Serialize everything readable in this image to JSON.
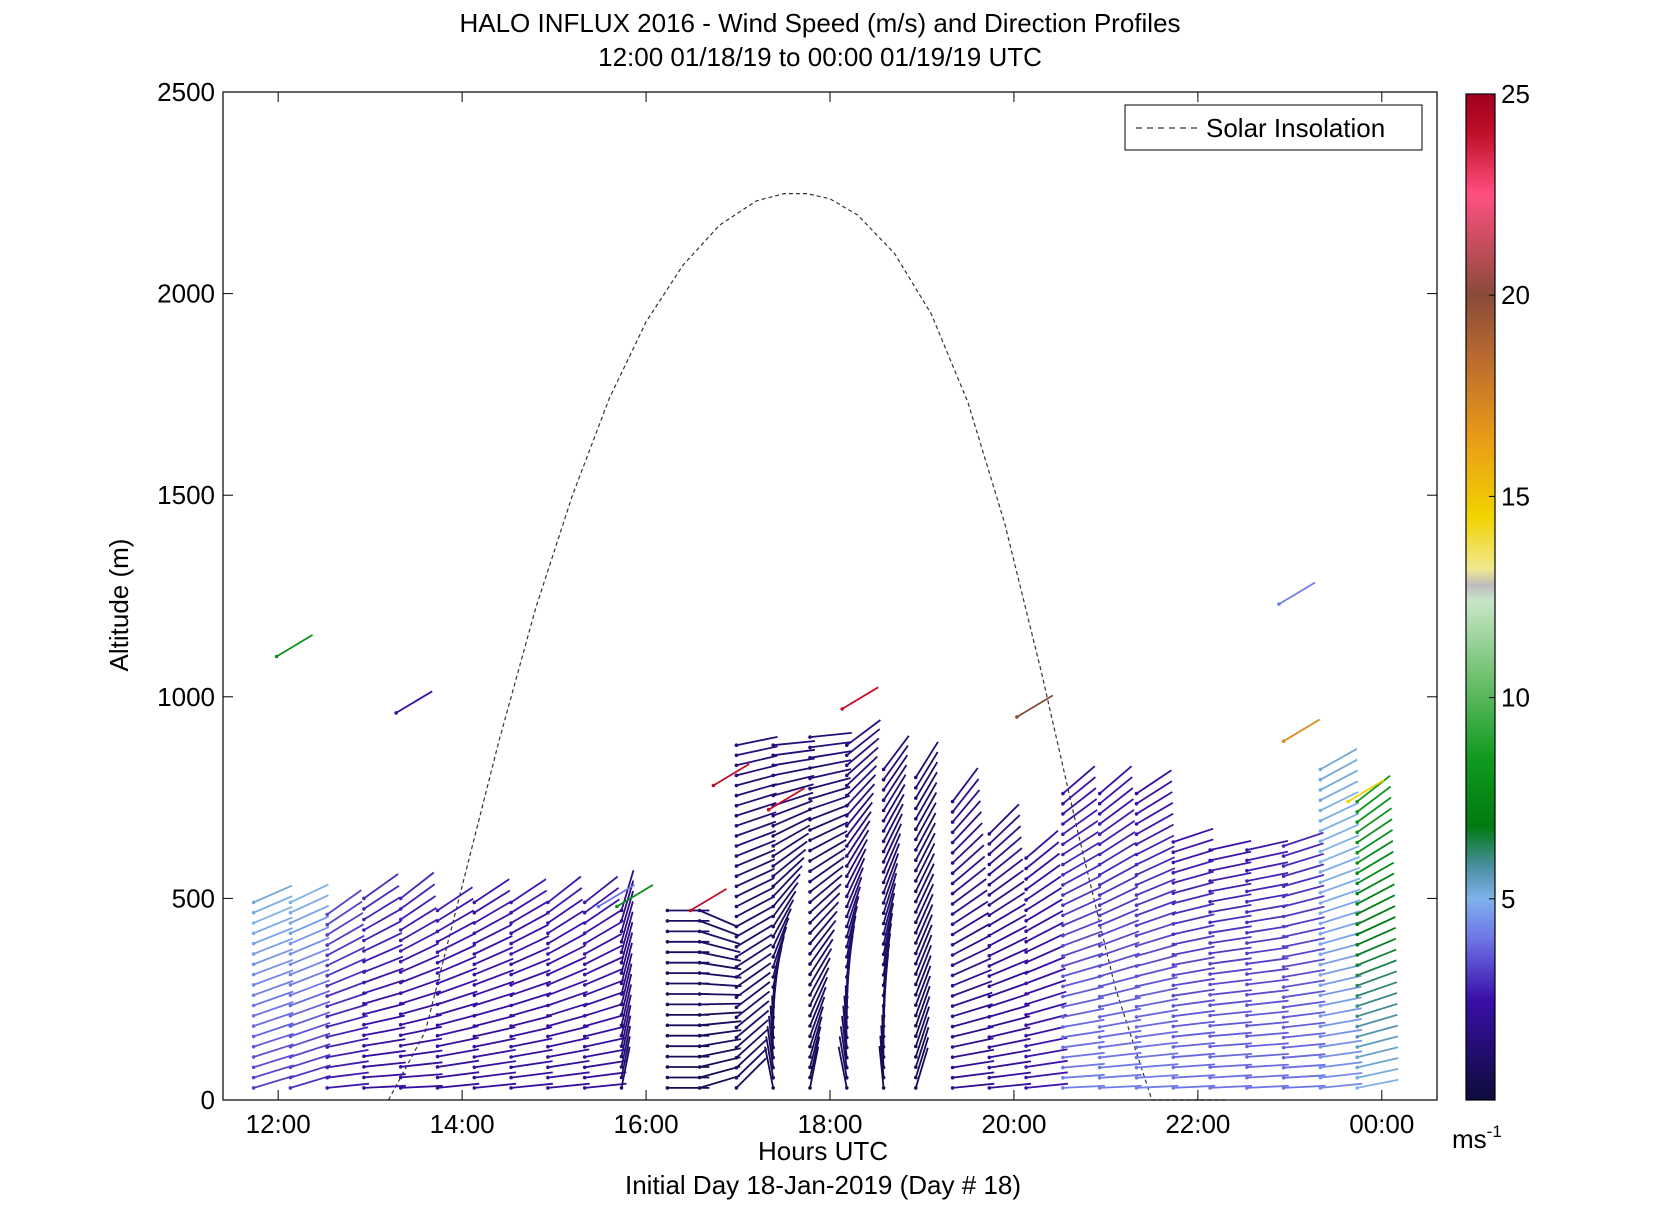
{
  "chart_data": {
    "type": "quiver",
    "title": "HALO INFLUX 2016 - Wind Speed (m/s) and Direction Profiles",
    "subtitle": "12:00 01/18/19 to 00:00 01/19/19  UTC",
    "xlabel": "Hours UTC",
    "xlabel2": "Initial Day 18-Jan-2019 (Day # 18)",
    "ylabel": "Altitude (m)",
    "xlim": [
      11.4,
      24.6
    ],
    "ylim": [
      0,
      2500
    ],
    "x_ticks": [
      12,
      14,
      16,
      18,
      20,
      22,
      24
    ],
    "x_tick_labels": [
      "12:00",
      "14:00",
      "16:00",
      "18:00",
      "20:00",
      "22:00",
      "00:00"
    ],
    "y_ticks": [
      0,
      500,
      1000,
      1500,
      2000,
      2500
    ],
    "y_tick_labels": [
      "0",
      "500",
      "1000",
      "1500",
      "2000",
      "2500"
    ],
    "legend": {
      "label": "Solar Insolation",
      "position": "top-right"
    },
    "colorbar": {
      "min": 0,
      "max": 25,
      "ticks": [
        5,
        10,
        15,
        20,
        25
      ],
      "tick_labels": [
        "5",
        "10",
        "15",
        "20",
        "25"
      ],
      "unit_label": "ms",
      "unit_exponent": "-1",
      "colormap": [
        [
          0,
          "#0d0b3a"
        ],
        [
          2.5,
          "#3a0fa8"
        ],
        [
          4,
          "#6e74e6"
        ],
        [
          5,
          "#7fb2ea"
        ],
        [
          5.8,
          "#4a8ea0"
        ],
        [
          6.8,
          "#007a10"
        ],
        [
          8.5,
          "#109a20"
        ],
        [
          10.5,
          "#6fc06f"
        ],
        [
          12.4,
          "#c8e6c8"
        ],
        [
          12.8,
          "#bdbdbd"
        ],
        [
          13.2,
          "#f0e890"
        ],
        [
          14.5,
          "#f2d300"
        ],
        [
          16.5,
          "#e89a18"
        ],
        [
          18.5,
          "#b86a30"
        ],
        [
          20,
          "#8a4a3a"
        ],
        [
          22.5,
          "#ff5080"
        ],
        [
          24,
          "#c0102a"
        ],
        [
          25,
          "#a00020"
        ]
      ]
    },
    "solar_insolation": {
      "style": "dashed",
      "x": [
        13.2,
        13.6,
        14,
        14.4,
        14.8,
        15.2,
        15.6,
        16,
        16.4,
        16.8,
        17.2,
        17.5,
        17.75,
        18,
        18.3,
        18.7,
        19.1,
        19.5,
        19.9,
        20.3,
        20.7,
        21.1,
        21.5,
        21.9,
        22.3
      ],
      "y": [
        0,
        170,
        530,
        890,
        1220,
        1500,
        1740,
        1930,
        2070,
        2170,
        2230,
        2248,
        2248,
        2235,
        2195,
        2100,
        1950,
        1730,
        1430,
        1060,
        660,
        280,
        0,
        0,
        0
      ]
    },
    "wind_profiles": [
      {
        "t": 11.95,
        "alt": [
          30,
          490
        ],
        "speed": [
          3.2,
          5.2
        ],
        "u": [
          -1,
          -0.8
        ],
        "v": [
          0.3,
          0.35
        ]
      },
      {
        "t": 12.35,
        "alt": [
          30,
          490
        ],
        "speed": [
          3.0,
          5.0
        ],
        "u": [
          -1,
          -0.85
        ],
        "v": [
          0.3,
          0.4
        ]
      },
      {
        "t": 12.75,
        "alt": [
          30,
          460
        ],
        "speed": [
          2.6,
          3.3
        ],
        "u": [
          -1,
          -0.7
        ],
        "v": [
          0.1,
          0.5
        ]
      },
      {
        "t": 13.15,
        "alt": [
          30,
          500
        ],
        "speed": [
          2.2,
          2.9
        ],
        "u": [
          -1,
          -0.7
        ],
        "v": [
          0.05,
          0.5
        ]
      },
      {
        "t": 13.55,
        "alt": [
          30,
          500
        ],
        "speed": [
          2.2,
          2.8
        ],
        "u": [
          -1,
          -0.7
        ],
        "v": [
          0.05,
          0.55
        ]
      },
      {
        "t": 13.95,
        "alt": [
          30,
          470
        ],
        "speed": [
          2.2,
          2.7
        ],
        "u": [
          -1,
          -0.75
        ],
        "v": [
          0.1,
          0.5
        ]
      },
      {
        "t": 14.35,
        "alt": [
          30,
          490
        ],
        "speed": [
          2.2,
          2.6
        ],
        "u": [
          -1,
          -0.75
        ],
        "v": [
          0.1,
          0.5
        ]
      },
      {
        "t": 14.75,
        "alt": [
          30,
          490
        ],
        "speed": [
          2.2,
          2.6
        ],
        "u": [
          -1,
          -0.75
        ],
        "v": [
          0.1,
          0.5
        ]
      },
      {
        "t": 15.15,
        "alt": [
          30,
          490
        ],
        "speed": [
          2.2,
          2.6
        ],
        "u": [
          -1,
          -0.7
        ],
        "v": [
          0.1,
          0.55
        ]
      },
      {
        "t": 15.55,
        "alt": [
          30,
          490
        ],
        "speed": [
          2.2,
          2.6
        ],
        "u": [
          -1,
          -0.7
        ],
        "v": [
          0.1,
          0.55
        ]
      },
      {
        "t": 15.95,
        "alt": [
          30,
          470
        ],
        "speed": [
          1.2,
          1.8
        ],
        "u": [
          -0.2,
          -0.3
        ],
        "v": [
          1,
          1
        ]
      },
      {
        "t": 16.45,
        "alt": [
          30,
          470
        ],
        "speed": [
          0.6,
          1.0
        ],
        "u": [
          -1,
          -1
        ],
        "v": [
          0,
          0
        ]
      },
      {
        "t": 16.8,
        "alt": [
          30,
          470
        ],
        "speed": [
          0.6,
          1.0
        ],
        "u": [
          -1,
          -0.7
        ],
        "v": [
          0.3,
          -0.3
        ]
      },
      {
        "t": 17.2,
        "alt": [
          30,
          880
        ],
        "speed": [
          0.8,
          1.5
        ],
        "u": [
          -0.7,
          -1
        ],
        "v": [
          0.7,
          0.2
        ]
      },
      {
        "t": 17.6,
        "alt": [
          30,
          880
        ],
        "speed": [
          0.6,
          1.4
        ],
        "u": [
          0.2,
          -1
        ],
        "v": [
          1,
          0.1
        ]
      },
      {
        "t": 18.0,
        "alt": [
          30,
          900
        ],
        "speed": [
          0.6,
          1.4
        ],
        "u": [
          -0.2,
          -1
        ],
        "v": [
          1,
          0.1
        ]
      },
      {
        "t": 18.4,
        "alt": [
          30,
          880
        ],
        "speed": [
          0.8,
          1.6
        ],
        "u": [
          0.2,
          -0.8
        ],
        "v": [
          1,
          0.6
        ]
      },
      {
        "t": 18.8,
        "alt": [
          30,
          820
        ],
        "speed": [
          0.6,
          1.4
        ],
        "u": [
          0.1,
          -0.6
        ],
        "v": [
          1,
          0.8
        ]
      },
      {
        "t": 19.15,
        "alt": [
          30,
          800
        ],
        "speed": [
          0.6,
          1.2
        ],
        "u": [
          -0.3,
          -0.5
        ],
        "v": [
          1,
          0.8
        ]
      },
      {
        "t": 19.55,
        "alt": [
          30,
          740
        ],
        "speed": [
          2.0,
          1.8
        ],
        "u": [
          -1,
          -0.6
        ],
        "v": [
          0.1,
          0.8
        ]
      },
      {
        "t": 19.95,
        "alt": [
          30,
          660
        ],
        "speed": [
          2.2,
          1.8
        ],
        "u": [
          -1,
          -0.7
        ],
        "v": [
          0.1,
          0.7
        ]
      },
      {
        "t": 20.35,
        "alt": [
          30,
          600
        ],
        "speed": [
          2.6,
          2.2
        ],
        "u": [
          -1,
          -0.7
        ],
        "v": [
          0.1,
          0.6
        ]
      },
      {
        "t": 20.75,
        "alt": [
          30,
          760
        ],
        "speed": [
          4.2,
          2.4
        ],
        "u": [
          -1,
          -0.7
        ],
        "v": [
          0.05,
          0.6
        ]
      },
      {
        "t": 21.15,
        "alt": [
          30,
          760
        ],
        "speed": [
          4.2,
          2.4
        ],
        "u": [
          -1,
          -0.7
        ],
        "v": [
          0.05,
          0.6
        ]
      },
      {
        "t": 21.55,
        "alt": [
          30,
          760
        ],
        "speed": [
          4.2,
          2.4
        ],
        "u": [
          -1,
          -0.75
        ],
        "v": [
          0.05,
          0.5
        ]
      },
      {
        "t": 21.95,
        "alt": [
          30,
          640
        ],
        "speed": [
          4.0,
          2.5
        ],
        "u": [
          -1,
          -0.9
        ],
        "v": [
          0.05,
          0.3
        ]
      },
      {
        "t": 22.35,
        "alt": [
          30,
          620
        ],
        "speed": [
          4.0,
          2.5
        ],
        "u": [
          -1,
          -0.9
        ],
        "v": [
          0.05,
          0.2
        ]
      },
      {
        "t": 22.75,
        "alt": [
          30,
          620
        ],
        "speed": [
          4.0,
          2.6
        ],
        "u": [
          -1,
          -0.9
        ],
        "v": [
          0.05,
          0.2
        ]
      },
      {
        "t": 23.15,
        "alt": [
          30,
          630
        ],
        "speed": [
          4.0,
          2.8
        ],
        "u": [
          -1,
          -0.9
        ],
        "v": [
          0.05,
          0.3
        ]
      },
      {
        "t": 23.55,
        "alt": [
          30,
          820
        ],
        "speed": [
          4.4,
          5.2
        ],
        "u": [
          -1,
          -0.8
        ],
        "v": [
          0.1,
          0.45
        ]
      },
      {
        "t": 23.95,
        "alt": [
          30,
          740
        ],
        "speed": [
          5.0,
          8.5
        ],
        "u": [
          -1,
          -0.7
        ],
        "v": [
          0.2,
          0.55
        ]
      }
    ],
    "isolated_vectors": [
      {
        "t": 12.2,
        "alt": 1100,
        "speed": 8.0
      },
      {
        "t": 13.5,
        "alt": 960,
        "speed": 2.5
      },
      {
        "t": 15.7,
        "alt": 480,
        "speed": 4.0
      },
      {
        "t": 15.9,
        "alt": 480,
        "speed": 8.0
      },
      {
        "t": 16.7,
        "alt": 470,
        "speed": 24.0
      },
      {
        "t": 16.95,
        "alt": 780,
        "speed": 24.0
      },
      {
        "t": 17.55,
        "alt": 720,
        "speed": 24.0
      },
      {
        "t": 18.35,
        "alt": 970,
        "speed": 24.0
      },
      {
        "t": 20.25,
        "alt": 950,
        "speed": 20.0
      },
      {
        "t": 23.1,
        "alt": 1230,
        "speed": 4.2
      },
      {
        "t": 23.15,
        "alt": 890,
        "speed": 17.0
      },
      {
        "t": 23.85,
        "alt": 740,
        "speed": 14.5
      }
    ]
  }
}
